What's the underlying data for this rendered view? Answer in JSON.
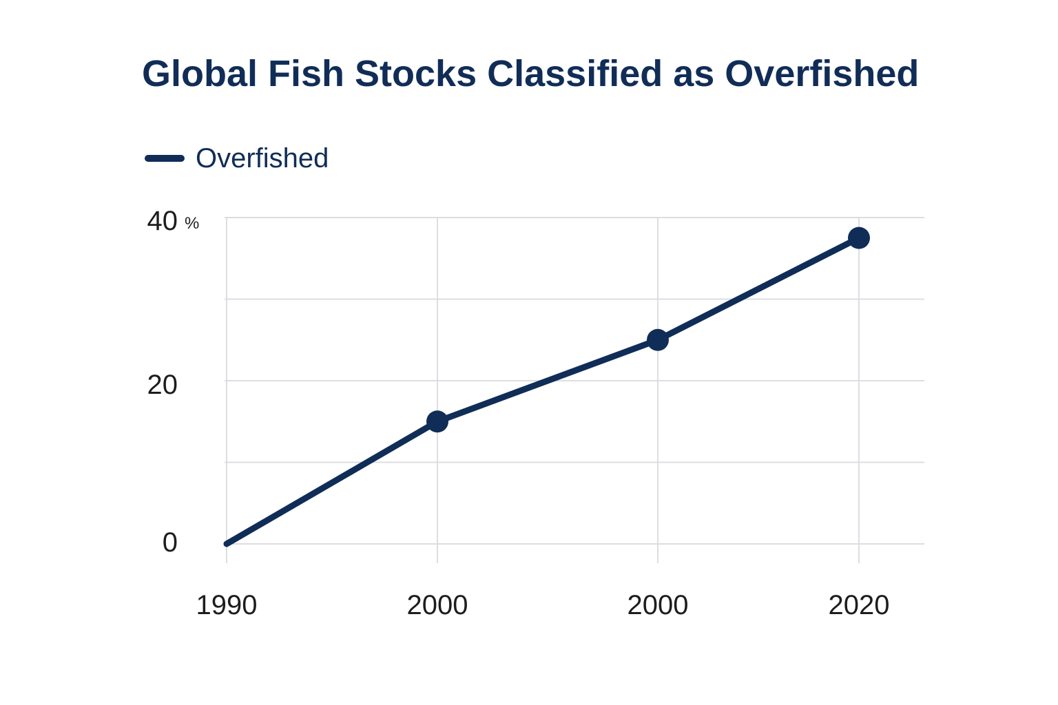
{
  "chart_data": {
    "type": "line",
    "title": "Global Fish Stocks Classified as Overfished",
    "xlabel": "",
    "ylabel": "",
    "x_categories": [
      "1990",
      "2000",
      "2000",
      "2020"
    ],
    "y_ticks": [
      "0",
      "20",
      "40"
    ],
    "y_unit": "%",
    "ylim": [
      0,
      40
    ],
    "grid": true,
    "legend_position": "top-left",
    "series": [
      {
        "name": "Overfished",
        "color": "#0f2d57",
        "points": [
          {
            "x": 0,
            "y": 0,
            "marker": false
          },
          {
            "x": 1,
            "y": 15,
            "marker": true
          },
          {
            "x": 2,
            "y": 25,
            "marker": true
          },
          {
            "x": 3,
            "y": 37.5,
            "marker": true
          }
        ]
      }
    ]
  }
}
